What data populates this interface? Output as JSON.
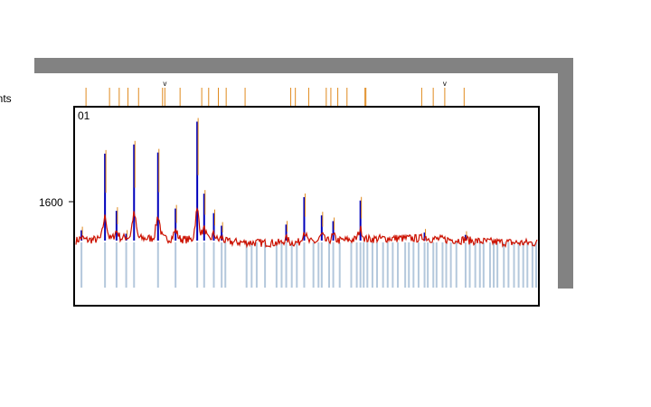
{
  "chart_data": {
    "type": "line",
    "panel_label": "01",
    "ylabel": "unts",
    "yticks": [
      1600
    ],
    "series_colors": {
      "trace": "#cc1100",
      "overlay": "#0000bb",
      "markers": "#e08a1e",
      "calc_lines": "#b4c8dc"
    },
    "baseline_counts": 1430,
    "noise_amplitude": 18,
    "ylim": [
      1300,
      1900
    ],
    "xlim": [
      0,
      100
    ],
    "peaks": [
      {
        "x": 1.2,
        "height": 45
      },
      {
        "x": 6.3,
        "height": 380
      },
      {
        "x": 8.8,
        "height": 130
      },
      {
        "x": 10.9,
        "height": 30
      },
      {
        "x": 12.6,
        "height": 420
      },
      {
        "x": 17.8,
        "height": 385
      },
      {
        "x": 21.6,
        "height": 140
      },
      {
        "x": 26.3,
        "height": 520
      },
      {
        "x": 27.8,
        "height": 205
      },
      {
        "x": 29.9,
        "height": 120
      },
      {
        "x": 31.6,
        "height": 65
      },
      {
        "x": 45.6,
        "height": 70
      },
      {
        "x": 49.5,
        "height": 190
      },
      {
        "x": 53.3,
        "height": 110
      },
      {
        "x": 55.8,
        "height": 85
      },
      {
        "x": 61.7,
        "height": 175
      },
      {
        "x": 75.6,
        "height": 35
      },
      {
        "x": 84.5,
        "height": 25
      }
    ],
    "markers_x": [
      1.2,
      6.3,
      8.4,
      10.3,
      12.6,
      17.8,
      18.3,
      21.6,
      26.3,
      27.8,
      29.9,
      31.6,
      35.7,
      45.6,
      46.6,
      49.5,
      53.3,
      54.3,
      55.8,
      57.8,
      61.7,
      61.9,
      74.0,
      76.5,
      79.0,
      83.2
    ],
    "star_markers_x": [
      18.3,
      79.0
    ],
    "calc_lines_x": [
      1.2,
      6.3,
      8.8,
      10.9,
      12.6,
      17.8,
      21.6,
      26.3,
      27.8,
      29.9,
      31.6,
      32.4,
      37.0,
      38.1,
      39.2,
      41.0,
      43.5,
      44.6,
      45.6,
      46.8,
      47.9,
      49.5,
      51.5,
      52.6,
      53.3,
      54.9,
      55.8,
      57.2,
      59.7,
      60.9,
      61.7,
      62.4,
      63.2,
      64.3,
      65.3,
      66.6,
      67.6,
      68.7,
      69.8,
      71.4,
      72.2,
      73.2,
      74.3,
      75.6,
      76.3,
      77.5,
      78.2,
      79.5,
      80.3,
      81.3,
      82.5,
      84.5,
      85.4,
      86.6,
      87.6,
      88.4,
      89.8,
      90.6,
      91.4,
      92.8,
      93.8,
      95.0,
      96.0,
      97.0,
      97.9,
      99.0,
      99.8
    ]
  }
}
